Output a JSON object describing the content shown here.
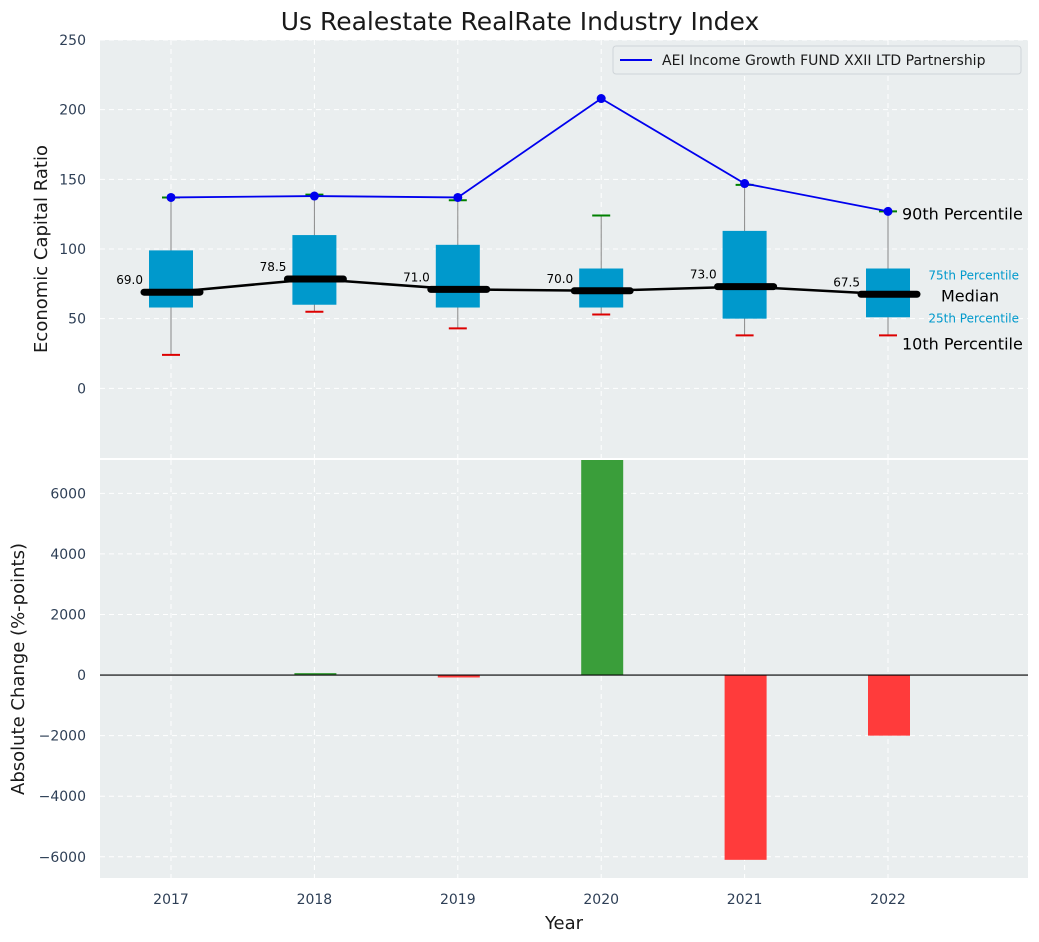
{
  "chart_data": [
    {
      "type": "box-line",
      "title": "Us Realestate RealRate Industry Index",
      "ylabel": "Economic Capital Ratio",
      "ylim": [
        -50,
        250
      ],
      "yticks": [
        0,
        50,
        100,
        150,
        200,
        250
      ],
      "grid": true,
      "categories": [
        "2017",
        "2018",
        "2019",
        "2020",
        "2021",
        "2022"
      ],
      "percentiles": {
        "p10": [
          24,
          55,
          43,
          53,
          38,
          38
        ],
        "p25": [
          58,
          60,
          58,
          58,
          50,
          51
        ],
        "median": [
          69.0,
          78.5,
          71.0,
          70.0,
          73.0,
          67.5
        ],
        "p75": [
          99,
          110,
          103,
          86,
          113,
          86
        ],
        "p90": [
          137,
          139,
          135,
          124,
          146,
          127
        ]
      },
      "median_labels": [
        "69.0",
        "78.5",
        "71.0",
        "70.0",
        "73.0",
        "67.5"
      ],
      "series": [
        {
          "name": "AEI Income Growth FUND XXII LTD Partnership",
          "values": [
            137,
            138,
            137,
            208,
            147,
            127
          ],
          "color": "#0000ee"
        }
      ],
      "annotations": {
        "p90": "90th Percentile",
        "p75": "75th Percentile",
        "median": "Median",
        "p25": "25th Percentile",
        "p10": "10th Percentile"
      },
      "legend_placement": "top-right",
      "colors": {
        "box": "#0099cc",
        "median": "#000000",
        "p90_cap": "#008000",
        "p10_cap": "#dd0000",
        "background": "#eaeeef"
      }
    },
    {
      "type": "bar",
      "ylabel": "Absolute Change (%-points)",
      "xlabel": "Year",
      "categories": [
        "2017",
        "2018",
        "2019",
        "2020",
        "2021",
        "2022"
      ],
      "values": [
        0,
        50,
        -80,
        7100,
        -6100,
        -2000
      ],
      "ylim": [
        -6700,
        7100
      ],
      "yticks": [
        -6000,
        -4000,
        -2000,
        0,
        2000,
        4000,
        6000
      ],
      "ytick_labels": [
        "−6000",
        "−4000",
        "−2000",
        "0",
        "2000",
        "4000",
        "6000"
      ],
      "grid": true,
      "colors": {
        "positive": "#3a9e3a",
        "negative": "#ff3b3b",
        "background": "#eaeeef"
      }
    }
  ]
}
